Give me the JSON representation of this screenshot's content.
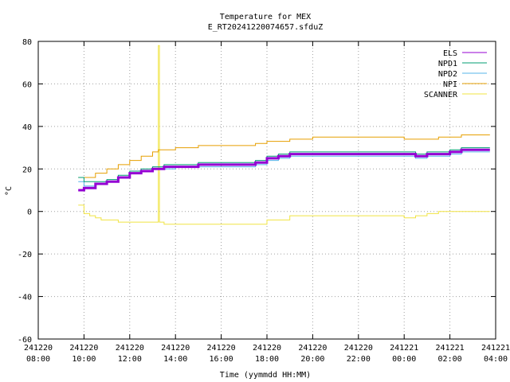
{
  "chart_data": {
    "type": "line",
    "title": "Temperature for MEX",
    "subtitle": "E_RT20241220074657.sfduZ",
    "xlabel": "Time (yymmdd HH:MM)",
    "ylabel": "°C",
    "grid": true,
    "legend_position": "top-right",
    "xlim": [
      8,
      28
    ],
    "ylim": [
      -60,
      80
    ],
    "x_ticks": [
      {
        "value": 8,
        "date": "241220",
        "time": "08:00"
      },
      {
        "value": 10,
        "date": "241220",
        "time": "10:00"
      },
      {
        "value": 12,
        "date": "241220",
        "time": "12:00"
      },
      {
        "value": 14,
        "date": "241220",
        "time": "14:00"
      },
      {
        "value": 16,
        "date": "241220",
        "time": "16:00"
      },
      {
        "value": 18,
        "date": "241220",
        "time": "18:00"
      },
      {
        "value": 20,
        "date": "241220",
        "time": "20:00"
      },
      {
        "value": 22,
        "date": "241220",
        "time": "22:00"
      },
      {
        "value": 24,
        "date": "241221",
        "time": "00:00"
      },
      {
        "value": 26,
        "date": "241221",
        "time": "02:00"
      },
      {
        "value": 28,
        "date": "241221",
        "time": "04:00"
      }
    ],
    "y_ticks": [
      -60,
      -40,
      -20,
      0,
      20,
      40,
      60,
      80
    ],
    "series": [
      {
        "name": "ELS",
        "color": "#9400d3",
        "width": 3,
        "x": [
          9.75,
          10.0,
          10.5,
          11.0,
          11.5,
          12.0,
          12.5,
          13.0,
          13.5,
          14.0,
          14.5,
          15.0,
          16.0,
          17.0,
          17.5,
          18.0,
          18.5,
          19.0,
          20.0,
          21.0,
          22.0,
          23.0,
          24.0,
          24.5,
          25.0,
          25.5,
          26.0,
          26.5,
          27.0,
          27.75
        ],
        "y": [
          10,
          11,
          13,
          14,
          16,
          18,
          19,
          20,
          21,
          21,
          21,
          22,
          22,
          22,
          23,
          25,
          26,
          27,
          27,
          27,
          27,
          27,
          27,
          26,
          27,
          27,
          28,
          29,
          29,
          29
        ]
      },
      {
        "name": "NPD1",
        "color": "#009e73",
        "width": 1,
        "x": [
          9.75,
          10.0,
          10.5,
          11.0,
          11.5,
          12.0,
          12.5,
          13.0,
          13.5,
          14.0,
          14.5,
          15.0,
          16.0,
          17.0,
          17.5,
          18.0,
          18.5,
          19.0,
          20.0,
          21.0,
          22.0,
          23.0,
          24.0,
          24.5,
          25.0,
          25.5,
          26.0,
          26.5,
          27.0,
          27.75
        ],
        "y": [
          16,
          14,
          14,
          15,
          17,
          19,
          20,
          21,
          22,
          22,
          22,
          23,
          23,
          23,
          24,
          26,
          27,
          28,
          28,
          28,
          28,
          28,
          28,
          27,
          28,
          28,
          29,
          30,
          30,
          30
        ]
      },
      {
        "name": "NPD2",
        "color": "#56b4e9",
        "width": 1,
        "x": [
          9.75,
          10.0,
          10.5,
          11.0,
          11.5,
          12.0,
          12.5,
          13.0,
          13.5,
          14.0,
          14.5,
          15.0,
          16.0,
          17.0,
          17.5,
          18.0,
          18.5,
          19.0,
          20.0,
          21.0,
          22.0,
          23.0,
          24.0,
          24.5,
          25.0,
          25.5,
          26.0,
          26.5,
          27.0,
          27.75
        ],
        "y": [
          14,
          12,
          13,
          14,
          16,
          18,
          19,
          20,
          20,
          21,
          21,
          21,
          21,
          21,
          22,
          24,
          25,
          26,
          26,
          26,
          26,
          26,
          26,
          25,
          26,
          26,
          27,
          28,
          28,
          28
        ]
      },
      {
        "name": "NPI",
        "color": "#e69f00",
        "width": 1,
        "x": [
          9.75,
          10.0,
          10.5,
          11.0,
          11.5,
          12.0,
          12.5,
          13.0,
          13.25,
          13.5,
          14.0,
          14.5,
          15.0,
          16.0,
          17.0,
          17.5,
          18.0,
          18.5,
          19.0,
          20.0,
          21.0,
          22.0,
          23.0,
          24.0,
          24.5,
          25.0,
          25.5,
          26.0,
          26.5,
          27.0,
          27.75
        ],
        "y": [
          16,
          16,
          18,
          20,
          22,
          24,
          26,
          28,
          29,
          29,
          30,
          30,
          31,
          31,
          31,
          32,
          33,
          33,
          34,
          35,
          35,
          35,
          35,
          34,
          34,
          34,
          35,
          35,
          36,
          36,
          36
        ]
      },
      {
        "name": "SCANNER",
        "color": "#f0e442",
        "width": 1,
        "x": [
          9.75,
          10.0,
          10.25,
          10.5,
          10.75,
          11.0,
          11.5,
          12.0,
          12.5,
          13.0,
          13.2,
          13.25,
          13.3,
          13.5,
          14.0,
          15.0,
          16.0,
          17.0,
          18.0,
          19.0,
          20.0,
          21.0,
          22.0,
          23.0,
          24.0,
          24.5,
          25.0,
          25.5,
          26.0,
          27.0,
          27.75
        ],
        "y": [
          3,
          -1,
          -2,
          -3,
          -4,
          -4,
          -5,
          -5,
          -5,
          -5,
          -5,
          78,
          -5,
          -6,
          -6,
          -6,
          -6,
          -6,
          -4,
          -2,
          -2,
          -2,
          -2,
          -2,
          -3,
          -2,
          -1,
          0,
          0,
          0,
          0
        ]
      }
    ]
  }
}
